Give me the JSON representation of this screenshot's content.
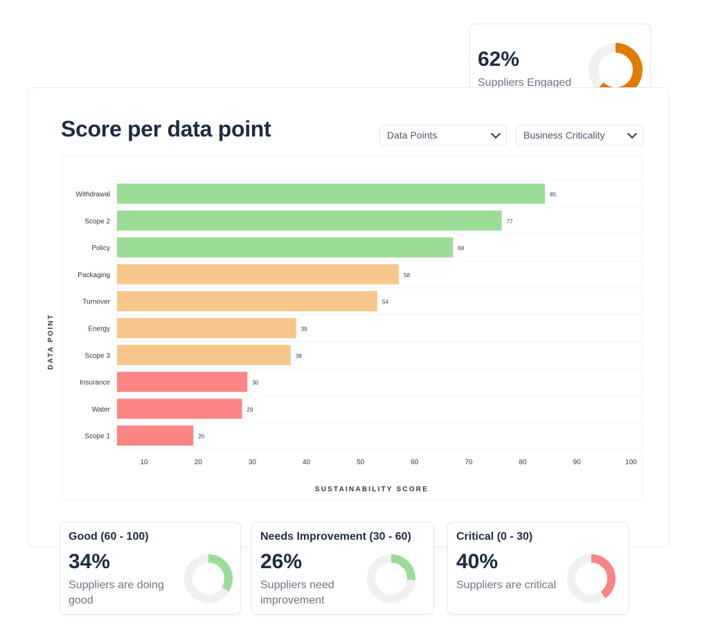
{
  "engaged_card": {
    "percent": "62%",
    "label": "Suppliers Engaged",
    "fraction": 0.62,
    "color": "#e07b00",
    "track_color": "#f0f0f0"
  },
  "main": {
    "title": "Score per data point",
    "filters": [
      {
        "label": "Data Points",
        "icon": "chevron-down-icon"
      },
      {
        "label": "Business Criticality",
        "icon": "chevron-down-icon"
      }
    ]
  },
  "chart_data": {
    "type": "bar",
    "orientation": "horizontal",
    "categories": [
      "Withdrawal",
      "Scope 2",
      "Policy",
      "Packaging",
      "Turnover",
      "Energy",
      "Scope 3",
      "Insurance",
      "Water",
      "Scope 1"
    ],
    "values": [
      85,
      77,
      68,
      58,
      54,
      39,
      38,
      30,
      29,
      20
    ],
    "bar_colors": [
      "#9bdd97",
      "#9bdd97",
      "#9bdd97",
      "#f7c68a",
      "#f7c68a",
      "#f7c68a",
      "#f7c68a",
      "#fb8585",
      "#fb8585",
      "#fb8585"
    ],
    "xlabel": "SUSTAINABILITY SCORE",
    "ylabel": "DATA POINT",
    "xticks": [
      10,
      20,
      30,
      40,
      50,
      60,
      70,
      80,
      90,
      100
    ],
    "grid": true
  },
  "cards": [
    {
      "id": "good",
      "heading": "Good (60 - 100)",
      "percent": "34%",
      "description": "Suppliers are doing good",
      "fraction": 0.34,
      "color": "#9bdd97"
    },
    {
      "id": "needs",
      "heading": "Needs Improvement (30 - 60)",
      "percent": "26%",
      "description": "Suppliers need improvement",
      "fraction": 0.26,
      "color": "#9bdd97"
    },
    {
      "id": "critical",
      "heading": "Critical (0 - 30)",
      "percent": "40%",
      "description": "Suppliers are critical",
      "fraction": 0.4,
      "color": "#fb8585"
    }
  ]
}
